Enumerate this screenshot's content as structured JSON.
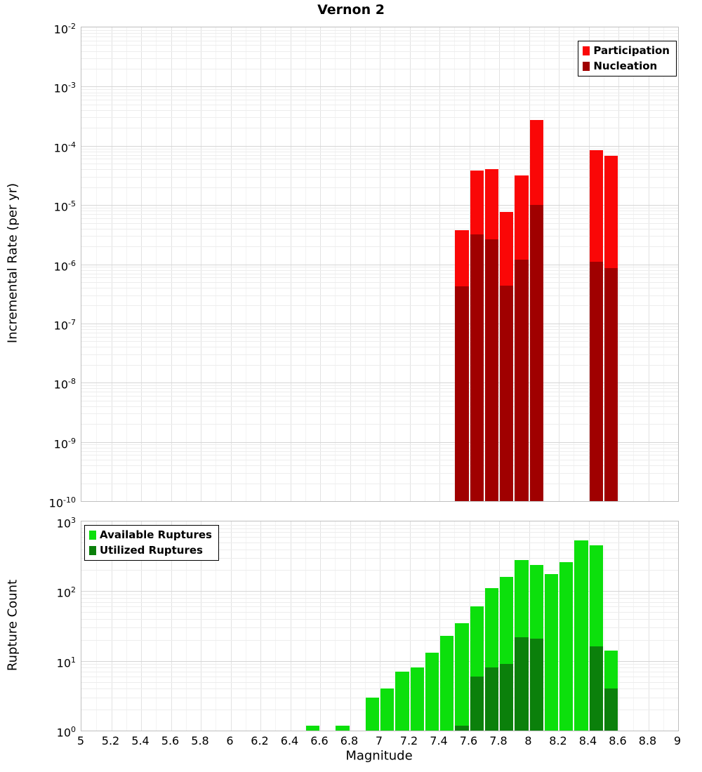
{
  "title": "Vernon 2",
  "x_axis": {
    "label": "Magnitude",
    "min": 5,
    "max": 9,
    "major_step": 0.2,
    "minor_step": 0.1,
    "tick_labels": [
      "5",
      "5.2",
      "5.4",
      "5.6",
      "5.8",
      "6",
      "6.2",
      "6.4",
      "6.6",
      "6.8",
      "7",
      "7.2",
      "7.4",
      "7.6",
      "7.8",
      "8",
      "8.2",
      "8.4",
      "8.6",
      "8.8",
      "9"
    ]
  },
  "chart_data": [
    {
      "type": "bar",
      "panel": "incremental-rate",
      "title": "Vernon 2",
      "ylabel": "Incremental Rate (per yr)",
      "y_scale": "log",
      "ylim": [
        1e-10,
        0.01
      ],
      "y_tick_exponents": [
        -2,
        -3,
        -4,
        -5,
        -6,
        -7,
        -8,
        -9,
        -10
      ],
      "bin_width": 0.1,
      "grid": true,
      "legend_position": "top-right",
      "legend": [
        {
          "label": "Participation",
          "color": "#fa0707"
        },
        {
          "label": "Nucleation",
          "color": "#a00000"
        }
      ],
      "series": [
        {
          "name": "Participation",
          "color": "#fa0707",
          "x": [
            7.55,
            7.65,
            7.75,
            7.85,
            7.95,
            8.05,
            8.45,
            8.55
          ],
          "values": [
            3.8e-06,
            3.8e-05,
            4e-05,
            7.6e-06,
            3.2e-05,
            0.00027,
            8.5e-05,
            6.8e-05
          ]
        },
        {
          "name": "Nucleation",
          "color": "#a00000",
          "x": [
            7.55,
            7.65,
            7.75,
            7.85,
            7.95,
            8.05,
            8.45,
            8.55
          ],
          "values": [
            4.2e-07,
            3.2e-06,
            2.6e-06,
            4.4e-07,
            1.2e-06,
            1e-05,
            1.1e-06,
            8.5e-07
          ]
        }
      ]
    },
    {
      "type": "bar",
      "panel": "rupture-count",
      "ylabel": "Rupture Count",
      "y_scale": "log",
      "ylim": [
        1,
        1000
      ],
      "y_tick_exponents": [
        0,
        1,
        2,
        3
      ],
      "bin_width": 0.1,
      "grid": true,
      "legend_position": "top-left",
      "legend": [
        {
          "label": "Available Ruptures",
          "color": "#0ce00c"
        },
        {
          "label": "Utilized Ruptures",
          "color": "#0b800b"
        }
      ],
      "series": [
        {
          "name": "Available Ruptures",
          "color": "#0ce00c",
          "x": [
            6.55,
            6.75,
            6.95,
            7.05,
            7.15,
            7.25,
            7.35,
            7.45,
            7.55,
            7.65,
            7.75,
            7.85,
            7.95,
            8.05,
            8.15,
            8.25,
            8.35,
            8.45,
            8.55
          ],
          "values": [
            1,
            1,
            3,
            4,
            7,
            8,
            13,
            23,
            35,
            60,
            110,
            160,
            280,
            240,
            175,
            260,
            540,
            450,
            14
          ]
        },
        {
          "name": "Utilized Ruptures",
          "color": "#0b800b",
          "x": [
            7.55,
            7.65,
            7.75,
            7.85,
            7.95,
            8.05,
            8.45,
            8.55
          ],
          "values": [
            1,
            6,
            8,
            9,
            22,
            21,
            16,
            4
          ]
        }
      ]
    }
  ]
}
